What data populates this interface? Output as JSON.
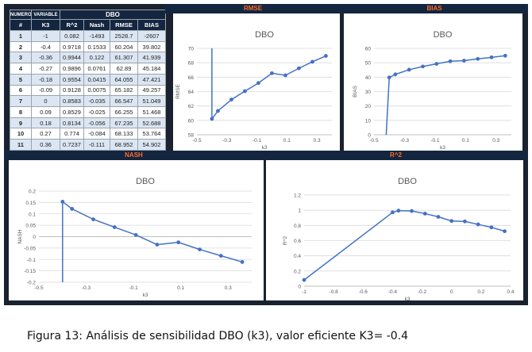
{
  "table": {
    "header_top": {
      "numero": "NUMERO",
      "variable": "VARIABLE",
      "group": "DBO"
    },
    "columns": [
      "#",
      "K3",
      "R^2",
      "Nash",
      "RMSE",
      "BIAS"
    ],
    "rows": [
      [
        "1",
        "-1",
        "0.082",
        "-1493",
        "2528.7",
        "-2607"
      ],
      [
        "2",
        "-0.4",
        "0.9718",
        "0.1533",
        "60.204",
        "39.802"
      ],
      [
        "3",
        "-0.36",
        "0.9944",
        "0.122",
        "61.307",
        "41.939"
      ],
      [
        "4",
        "-0.27",
        "0.9896",
        "0.0761",
        "62.89",
        "45.184"
      ],
      [
        "5",
        "-0.18",
        "0.9554",
        "0.0415",
        "64.055",
        "47.421"
      ],
      [
        "6",
        "-0.09",
        "0.9128",
        "0.0075",
        "65.182",
        "49.257"
      ],
      [
        "7",
        "0",
        "0.8583",
        "-0.035",
        "66.547",
        "51.049"
      ],
      [
        "8",
        "0.09",
        "0.8529",
        "-0.025",
        "66.255",
        "51.468"
      ],
      [
        "9",
        "0.18",
        "0.8134",
        "-0.056",
        "67.235",
        "52.688"
      ],
      [
        "10",
        "0.27",
        "0.774",
        "-0.084",
        "68.133",
        "53.764"
      ],
      [
        "11",
        "0.36",
        "0.7237",
        "-0.111",
        "68.952",
        "54.902"
      ]
    ]
  },
  "chart_data": [
    {
      "id": "rmse",
      "type": "line",
      "band": "RMSE",
      "title": "DBO",
      "xlabel": "k3",
      "ylabel": "RMSE",
      "xlim": [
        -0.5,
        0.4
      ],
      "ylim": [
        58,
        70
      ],
      "xticks": [
        -0.5,
        -0.3,
        -0.1,
        0.1,
        0.3
      ],
      "xtick_labels": [
        "-0.5",
        "-0.3",
        "-0.1",
        "0.1",
        "0.3"
      ],
      "yticks": [
        58,
        60,
        62,
        64,
        66,
        68,
        70
      ],
      "ytick_labels": [
        "58",
        "60",
        "62",
        "64",
        "66",
        "68",
        "70"
      ],
      "x": [
        -0.4,
        -0.36,
        -0.27,
        -0.18,
        -0.09,
        0,
        0.09,
        0.18,
        0.27,
        0.36
      ],
      "y": [
        60.204,
        61.307,
        62.89,
        64.055,
        65.182,
        66.547,
        66.255,
        67.235,
        68.133,
        68.952
      ],
      "offscale_from": [
        -0.4,
        70
      ],
      "color": "#4472c4"
    },
    {
      "id": "bias",
      "type": "line",
      "band": "BIAS",
      "title": "DBO",
      "xlabel": "k3",
      "ylabel": "BIAS",
      "xlim": [
        -0.5,
        0.4
      ],
      "ylim": [
        0,
        60
      ],
      "xticks": [
        -0.5,
        -0.3,
        -0.1,
        0.1,
        0.3
      ],
      "xtick_labels": [
        "-0.5",
        "-0.3",
        "-0.1",
        "0.1",
        "0.3"
      ],
      "yticks": [
        0,
        10,
        20,
        30,
        40,
        50,
        60
      ],
      "ytick_labels": [
        "0",
        "10",
        "20",
        "30",
        "40",
        "50",
        "60"
      ],
      "x": [
        -0.4,
        -0.36,
        -0.27,
        -0.18,
        -0.09,
        0,
        0.09,
        0.18,
        0.27,
        0.36
      ],
      "y": [
        39.802,
        41.939,
        45.184,
        47.421,
        49.257,
        51.049,
        51.468,
        52.688,
        53.764,
        54.902
      ],
      "offscale_from": [
        -0.42,
        0
      ],
      "color": "#4472c4"
    },
    {
      "id": "nash",
      "type": "line",
      "band": "NASH",
      "title": "DBO",
      "xlabel": "k3",
      "ylabel": "NASH",
      "xlim": [
        -0.5,
        0.4
      ],
      "ylim": [
        -0.2,
        0.2
      ],
      "xticks": [
        -0.5,
        -0.3,
        -0.1,
        0.1,
        0.3
      ],
      "xtick_labels": [
        "-0.5",
        "-0.3",
        "-0.1",
        "0.1",
        "0.3"
      ],
      "yticks": [
        -0.2,
        -0.15,
        -0.1,
        -0.05,
        0,
        0.05,
        0.1,
        0.15,
        0.2
      ],
      "ytick_labels": [
        "-0.2",
        "-0.15",
        "-0.1",
        "-0.05",
        "0",
        "0.05",
        "0.1",
        "0.15",
        "0.2"
      ],
      "x": [
        -0.4,
        -0.36,
        -0.27,
        -0.18,
        -0.09,
        0,
        0.09,
        0.18,
        0.27,
        0.36
      ],
      "y": [
        0.1533,
        0.122,
        0.0761,
        0.0415,
        0.0075,
        -0.035,
        -0.025,
        -0.056,
        -0.084,
        -0.111
      ],
      "offscale_from": [
        -0.4,
        -0.2
      ],
      "color": "#4472c4"
    },
    {
      "id": "r2",
      "type": "line",
      "band": "R^2",
      "title": "DBO",
      "xlabel": "k3",
      "ylabel": "R^2",
      "xlim": [
        -1,
        0.4
      ],
      "ylim": [
        0,
        1.2
      ],
      "xticks": [
        -1,
        -0.8,
        -0.6,
        -0.4,
        -0.2,
        0,
        0.2,
        0.4
      ],
      "xtick_labels": [
        "-1",
        "-0.8",
        "-0.6",
        "-0.4",
        "-0.2",
        "0",
        "0.2",
        "0.4"
      ],
      "yticks": [
        0,
        0.2,
        0.4,
        0.6,
        0.8,
        1,
        1.2
      ],
      "ytick_labels": [
        "0",
        "0.2",
        "0.4",
        "0.6",
        "0.8",
        "1",
        "1.2"
      ],
      "x": [
        -1,
        -0.4,
        -0.36,
        -0.27,
        -0.18,
        -0.09,
        0,
        0.09,
        0.18,
        0.27,
        0.36
      ],
      "y": [
        0.082,
        0.9718,
        0.9944,
        0.9896,
        0.9554,
        0.9128,
        0.8583,
        0.8529,
        0.8134,
        0.774,
        0.7237
      ],
      "color": "#4472c4"
    }
  ],
  "caption": {
    "label": "Figura 13:",
    "text": " Análisis de sensibilidad DBO (k3), valor eficiente K3= -0.4"
  }
}
